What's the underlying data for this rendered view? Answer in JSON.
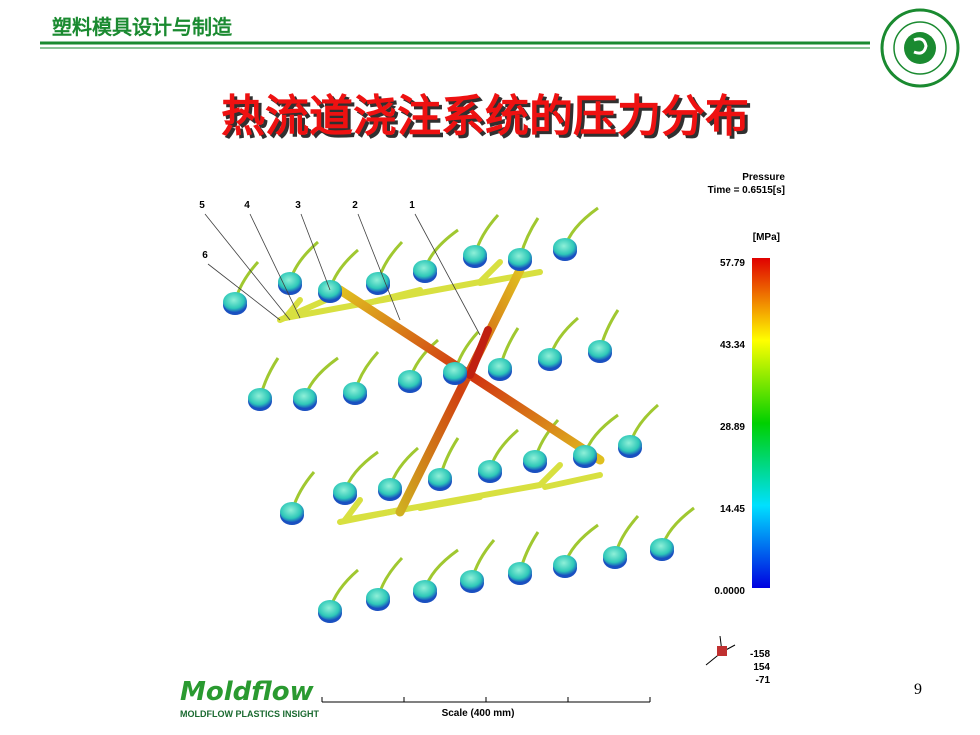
{
  "header": {
    "title": "塑料模具设计与制造"
  },
  "slide": {
    "title": "热流道浇注系统的压力分布",
    "page_number": "9"
  },
  "screenshot": {
    "result_name": "Pressure",
    "time": "Time = 0.6515[s]",
    "unit": "[MPa]",
    "legend_labels": [
      "57.79",
      "43.34",
      "28.89",
      "14.45",
      "0.0000"
    ],
    "callouts": [
      "5",
      "4",
      "3",
      "2",
      "1",
      "6"
    ],
    "orientation": [
      "-158",
      "154",
      "-71"
    ],
    "scale": "Scale (400 mm)",
    "logo": "Moldflow",
    "product": "MOLDFLOW PLASTICS INSIGHT"
  }
}
